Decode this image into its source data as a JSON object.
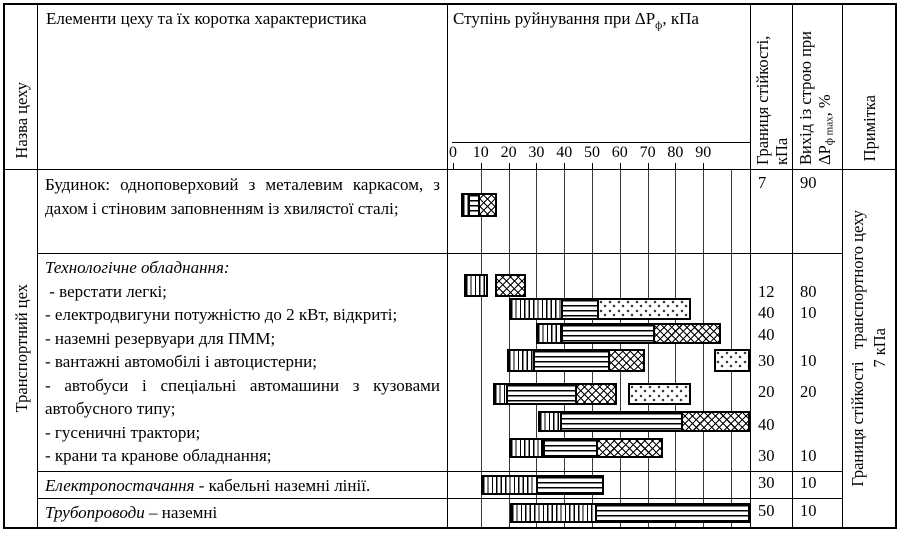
{
  "table": {
    "headers": {
      "name_col": "Назва цеху",
      "elements_col": "Елементи цеху та їх коротка характеристика",
      "degree_prefix": "Ступінь руйнування при ΔР",
      "degree_sub": "ф",
      "degree_suffix": ", кПа",
      "stability_col": "Границя стійкості, кПа",
      "failure_prefix": "Вихід із строю при ΔР",
      "failure_sub": "ф max",
      "failure_suffix": ", %",
      "note_col": "Примітка"
    },
    "workshop_name": "Транспортний цех",
    "note": {
      "line1": "Границя стійкості   транспортного цеху",
      "line2": "7 кПа"
    },
    "sections": {
      "building": {
        "text": "Будинок: одноповерховий з металевим каркасом, з дахом і стіновим заповненням із хвилястої сталі;",
        "stability_kpa": "7",
        "failure_pct": "90"
      },
      "equipment": {
        "title": "Технологічне обладнання:",
        "items": [
          {
            "text": " - верстати легкі;",
            "stability_kpa": "12",
            "failure_pct": "80"
          },
          {
            "text": "- електродвигуни потужністю до 2 кВт, відкриті;",
            "stability_kpa": "40",
            "failure_pct": "10"
          },
          {
            "text": "- наземні резервуари для ПММ;",
            "stability_kpa": "40",
            "failure_pct": ""
          },
          {
            "text": "- вантажні автомобілі і автоцистерни;",
            "stability_kpa": "30",
            "failure_pct": "10"
          },
          {
            "text": "- автобуси і спеціальні автомашини з кузовами автобусного типу;",
            "stability_kpa": "20",
            "failure_pct": "20"
          },
          {
            "text": "- гусеничні трактори;",
            "stability_kpa": "40",
            "failure_pct": ""
          },
          {
            "text": "- крани та кранове обладнання;",
            "stability_kpa": "30",
            "failure_pct": "10"
          }
        ]
      },
      "power": {
        "lead": "Електропостачання",
        "rest": " - кабельні наземні лінії.",
        "stability_kpa": "30",
        "failure_pct": "10"
      },
      "pipes": {
        "lead": "Трубопроводи",
        "rest": " – наземні",
        "stability_kpa": "50",
        "failure_pct": "10"
      }
    }
  },
  "chart_data": {
    "type": "bar",
    "title": "Ступінь руйнування при ΔРф, кПа",
    "xlabel": "ΔРф, кПа",
    "x_axis": {
      "min": 0,
      "ticks": [
        0,
        10,
        20,
        30,
        40,
        50,
        60,
        70,
        80,
        90
      ],
      "drawn_max": 106,
      "grid": true
    },
    "bars": [
      {
        "row": "building",
        "label": "Будинок одноповерховий",
        "segments": [
          {
            "pattern": "vertical-hatch",
            "from": 3,
            "to": 6.5
          },
          {
            "pattern": "horizontal-hatch",
            "from": 6.5,
            "to": 10
          },
          {
            "pattern": "cross-hatch",
            "from": 10,
            "to": 14.5
          }
        ]
      },
      {
        "row": "eq0",
        "label": "верстати легкі",
        "segments": [
          {
            "pattern": "vertical-hatch",
            "from": 4,
            "to": 11
          },
          {
            "pattern": "cross-hatch",
            "from": 15,
            "to": 25
          }
        ]
      },
      {
        "row": "eq1",
        "label": "електродвигуни до 2 кВт",
        "segments": [
          {
            "pattern": "vertical-hatch",
            "from": 20,
            "to": 40
          },
          {
            "pattern": "horizontal-hatch",
            "from": 40,
            "to": 53
          },
          {
            "pattern": "dots",
            "from": 53,
            "to": 84
          }
        ]
      },
      {
        "row": "eq2",
        "label": "наземні резервуари для ПММ",
        "segments": [
          {
            "pattern": "vertical-hatch",
            "from": 30,
            "to": 40
          },
          {
            "pattern": "horizontal-hatch",
            "from": 40,
            "to": 73
          },
          {
            "pattern": "cross-hatch",
            "from": 73,
            "to": 95
          }
        ]
      },
      {
        "row": "eq3",
        "label": "вантажні автомобілі і автоцистерни",
        "segments": [
          {
            "pattern": "vertical-hatch",
            "from": 19.5,
            "to": 30
          },
          {
            "pattern": "horizontal-hatch",
            "from": 30,
            "to": 57
          },
          {
            "pattern": "cross-hatch",
            "from": 57,
            "to": 67.5
          },
          {
            "pattern": "dots",
            "from": 94,
            "to": 106
          }
        ]
      },
      {
        "row": "eq4",
        "label": "автобуси і спеціальні автомашини",
        "segments": [
          {
            "pattern": "vertical-hatch",
            "from": 14.5,
            "to": 20
          },
          {
            "pattern": "horizontal-hatch",
            "from": 20,
            "to": 45
          },
          {
            "pattern": "cross-hatch",
            "from": 45,
            "to": 57.5
          },
          {
            "pattern": "dots",
            "from": 63,
            "to": 84
          }
        ]
      },
      {
        "row": "eq5",
        "label": "гусеничні трактори",
        "segments": [
          {
            "pattern": "vertical-hatch",
            "from": 30.5,
            "to": 39.5
          },
          {
            "pattern": "horizontal-hatch",
            "from": 39.5,
            "to": 83
          },
          {
            "pattern": "cross-hatch",
            "from": 83,
            "to": 106
          }
        ]
      },
      {
        "row": "eq6",
        "label": "крани та кранове обладнання",
        "segments": [
          {
            "pattern": "vertical-hatch",
            "from": 20,
            "to": 31
          },
          {
            "pattern": "horizontal-hatch",
            "from": 32.5,
            "to": 52.5
          },
          {
            "pattern": "cross-hatch",
            "from": 52.5,
            "to": 74
          }
        ]
      },
      {
        "row": "power",
        "label": "кабельні наземні лінії",
        "segments": [
          {
            "pattern": "vertical-hatch",
            "from": 10,
            "to": 31
          },
          {
            "pattern": "horizontal-hatch",
            "from": 31,
            "to": 53
          }
        ]
      },
      {
        "row": "pipes",
        "label": "трубопроводи наземні",
        "segments": [
          {
            "pattern": "vertical-hatch",
            "from": 20.5,
            "to": 52
          },
          {
            "pattern": "horizontal-hatch",
            "from": 52,
            "to": 105.5
          }
        ]
      }
    ]
  }
}
